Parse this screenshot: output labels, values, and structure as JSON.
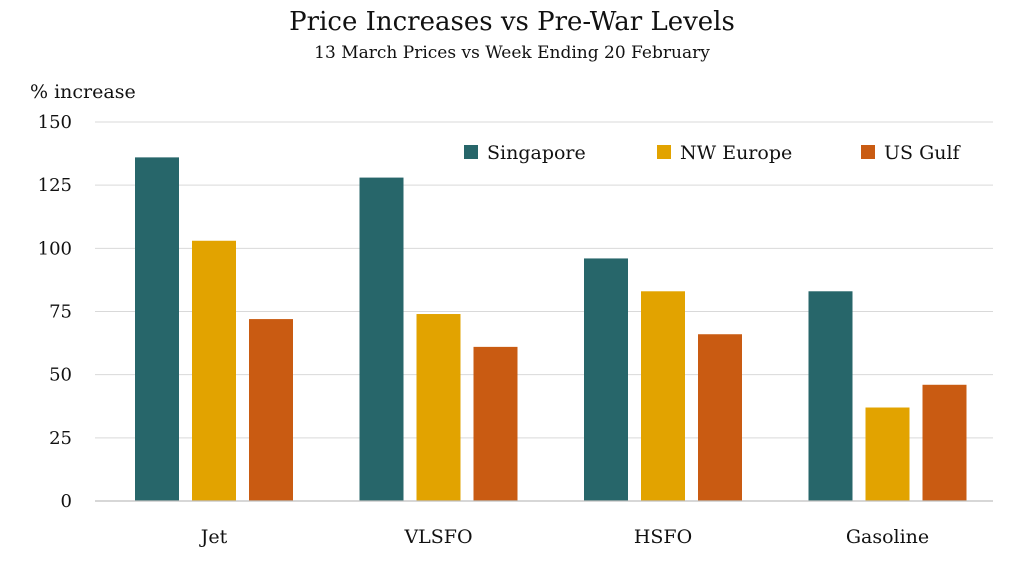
{
  "chart_data": {
    "type": "bar",
    "title": "Price Increases vs Pre-War Levels",
    "subtitle": "13 March Prices vs Week Ending 20 February",
    "xlabel": "",
    "ylabel": "% increase",
    "ylim": [
      0,
      150
    ],
    "yticks": [
      0,
      25,
      50,
      75,
      100,
      125,
      150
    ],
    "grid": true,
    "legend_position": "top-right",
    "categories": [
      "Jet",
      "VLSFO",
      "HSFO",
      "Gasoline"
    ],
    "series": [
      {
        "name": "Singapore",
        "color": "#27666a",
        "values": [
          136,
          128,
          96,
          83
        ]
      },
      {
        "name": "NW Europe",
        "color": "#e2a300",
        "values": [
          103,
          74,
          83,
          37
        ]
      },
      {
        "name": "US Gulf",
        "color": "#c95b12",
        "values": [
          72,
          61,
          66,
          46
        ]
      }
    ]
  }
}
